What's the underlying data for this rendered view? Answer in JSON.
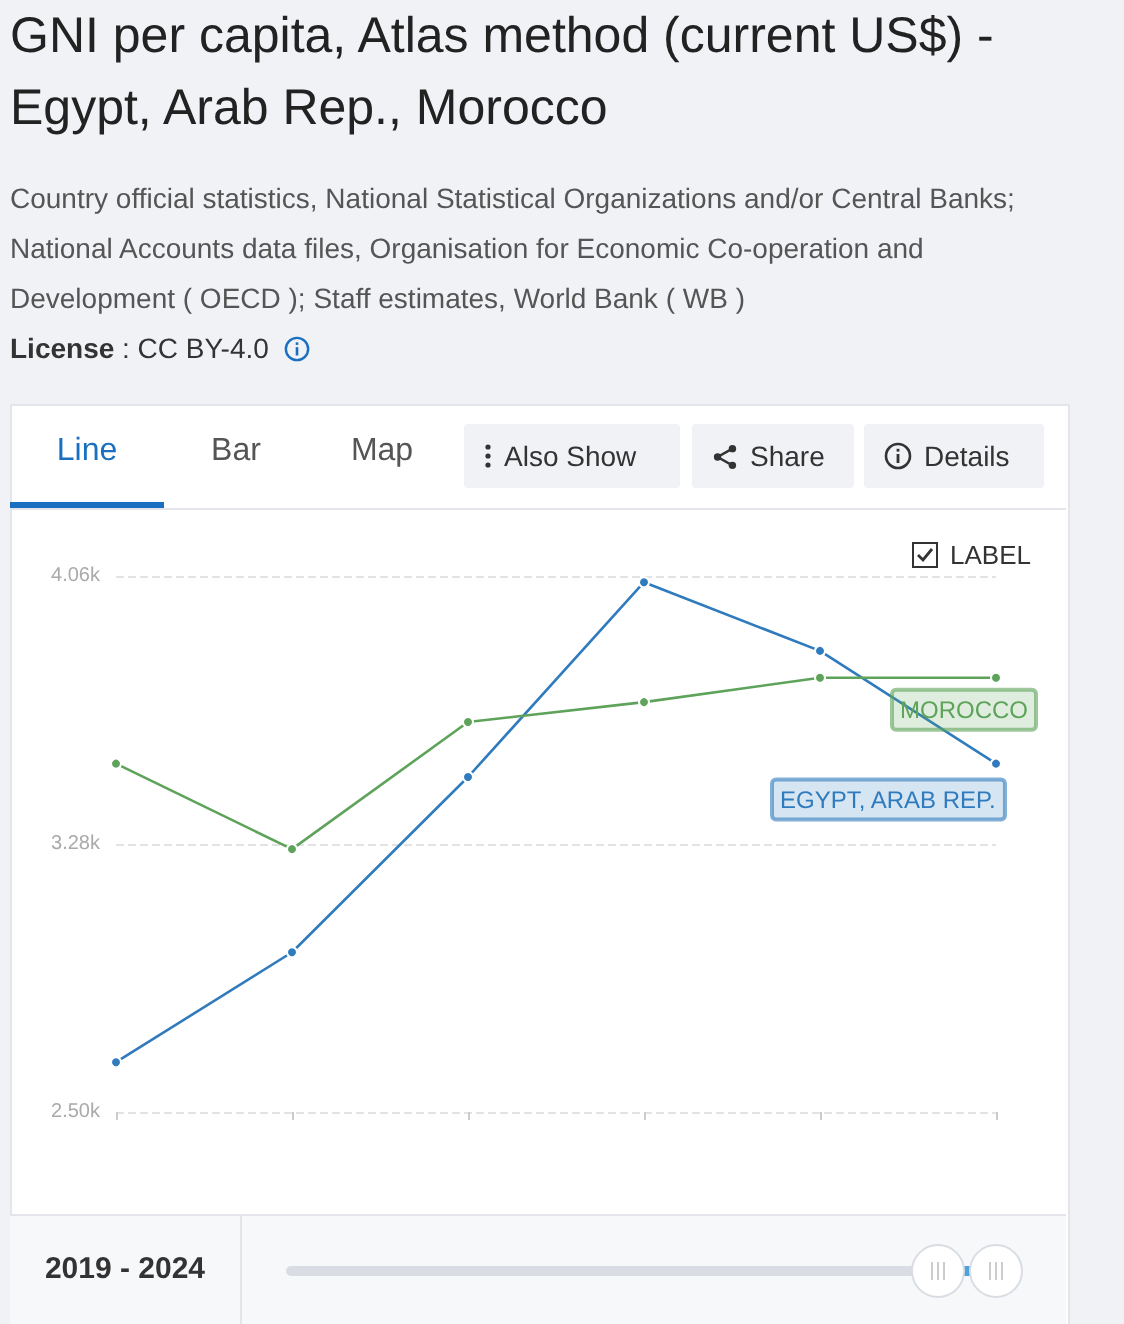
{
  "chart_data": {
    "type": "line",
    "title": "GNI per capita, Atlas method (current US$) - Egypt, Arab Rep., Morocco",
    "subtitle": "Country official statistics, National Statistical Organizations and/or Central Banks; National Accounts data files, Organisation for Economic Co-operation and Development ( OECD ); Staff estimates, World Bank ( WB )",
    "annotations": [
      "License : CC BY-4.0",
      "Line",
      "Bar",
      "Map",
      "Also Show",
      "Share",
      "Details",
      "LABEL",
      "2019 - 2024"
    ],
    "categories": [
      null,
      null,
      null,
      null,
      null,
      null
    ],
    "series": [
      {
        "name": "EGYPT, ARAB REP.",
        "color": "#2f7bbd",
        "values": [
          2645,
          2965,
          3475,
          4042,
          3842,
          3514
        ]
      },
      {
        "name": "MOROCCO",
        "color": "#5ea35a",
        "values": [
          3514,
          3265,
          3635,
          3693,
          3764,
          3764
        ]
      }
    ],
    "ylim": [
      2500,
      4060
    ],
    "yticks": [
      {
        "value": 2500,
        "label": "2.50k"
      },
      {
        "value": 3280,
        "label": "3.28k"
      },
      {
        "value": 4060,
        "label": "4.06k"
      }
    ],
    "grid": "y",
    "legend": false,
    "marker": "circle",
    "line_style": "solid"
  }
}
